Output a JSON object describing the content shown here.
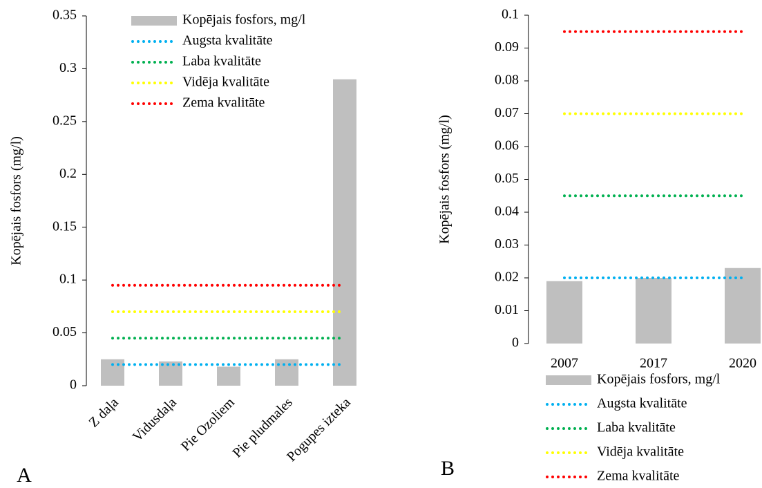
{
  "chart_data": [
    {
      "type": "bar",
      "label": "A",
      "y_label": "Kopējais fosfors (mg/l)",
      "categories": [
        "Z daļa",
        "Vidusdaļa",
        "Pie Ozoliem",
        "Pie pludmales",
        "Pogupes izteka"
      ],
      "ylim": [
        0,
        0.35
      ],
      "yticks": [
        0,
        0.05,
        0.1,
        0.15,
        0.2,
        0.25,
        0.3,
        0.35
      ],
      "legend": "top",
      "series": [
        {
          "name": "Kopējais fosfors, mg/l",
          "type": "bar",
          "color": "#bfbfbf",
          "values": [
            0.025,
            0.023,
            0.018,
            0.025,
            0.29
          ]
        },
        {
          "name": "Augsta kvalitāte",
          "type": "line",
          "color": "#00b0f0",
          "values": [
            0.02,
            0.02,
            0.02,
            0.02,
            0.02
          ]
        },
        {
          "name": "Laba kvalitāte",
          "type": "line",
          "color": "#00b050",
          "values": [
            0.045,
            0.045,
            0.045,
            0.045,
            0.045
          ]
        },
        {
          "name": "Vidēja kvalitāte",
          "type": "line",
          "color": "#ffff00",
          "values": [
            0.07,
            0.07,
            0.07,
            0.07,
            0.07
          ]
        },
        {
          "name": "Zema kvalitāte",
          "type": "line",
          "color": "#ff0000",
          "values": [
            0.095,
            0.095,
            0.095,
            0.095,
            0.095
          ]
        }
      ]
    },
    {
      "type": "bar",
      "label": "B",
      "y_label": "Kopējais fosfors (mg/l)",
      "categories": [
        "2007",
        "2017",
        "2020"
      ],
      "ylim": [
        0,
        0.1
      ],
      "yticks": [
        0,
        0.01,
        0.02,
        0.03,
        0.04,
        0.05,
        0.06,
        0.07,
        0.08,
        0.09,
        0.1
      ],
      "legend": "bottom",
      "series": [
        {
          "name": "Kopējais fosfors, mg/l",
          "type": "bar",
          "color": "#bfbfbf",
          "values": [
            0.019,
            0.02,
            0.023
          ]
        },
        {
          "name": "Augsta kvalitāte",
          "type": "line",
          "color": "#00b0f0",
          "values": [
            0.02,
            0.02,
            0.02
          ]
        },
        {
          "name": "Laba kvalitāte",
          "type": "line",
          "color": "#00b050",
          "values": [
            0.045,
            0.045,
            0.045
          ]
        },
        {
          "name": "Vidēja kvalitāte",
          "type": "line",
          "color": "#ffff00",
          "values": [
            0.07,
            0.07,
            0.07
          ]
        },
        {
          "name": "Zema kvalitāte",
          "type": "line",
          "color": "#ff0000",
          "values": [
            0.095,
            0.095,
            0.095
          ]
        }
      ]
    }
  ]
}
